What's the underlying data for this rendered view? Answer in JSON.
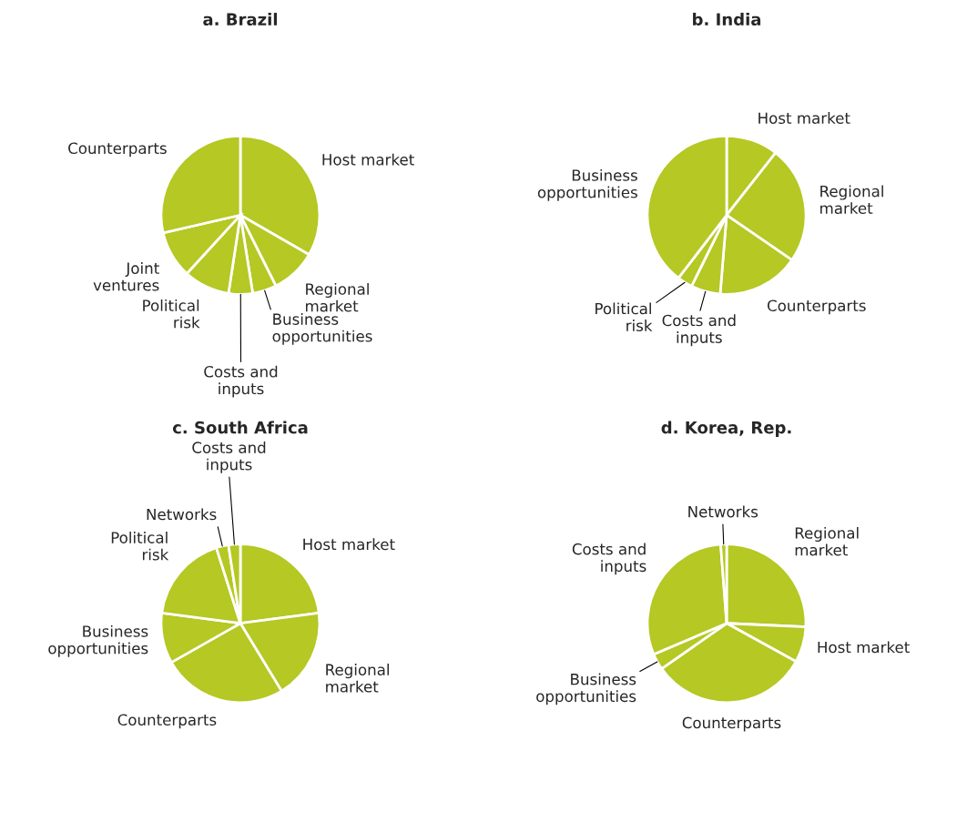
{
  "chart_data": [
    {
      "type": "pie",
      "title": "a. Brazil",
      "categories": [
        "Host market",
        "Regional market",
        "Business opportunities",
        "Costs and inputs",
        "Political risk",
        "Joint ventures",
        "Counterparts"
      ],
      "values": [
        33.3,
        9.3,
        4.9,
        4.9,
        9.4,
        9.6,
        28.6
      ],
      "colors": [
        "#b5c823",
        "#b5c823",
        "#b5c823",
        "#b5c823",
        "#b5c823",
        "#b5c823",
        "#b5c823"
      ]
    },
    {
      "type": "pie",
      "title": "b. India",
      "categories": [
        "Host market",
        "Regional market",
        "Counterparts",
        "Costs and inputs",
        "Political risk",
        "Business opportunities"
      ],
      "values": [
        10.6,
        24.0,
        16.7,
        6.0,
        3.1,
        39.6
      ],
      "colors": [
        "#b5c823",
        "#b5c823",
        "#b5c823",
        "#b5c823",
        "#b5c823",
        "#b5c823"
      ]
    },
    {
      "type": "pie",
      "title": "c. South Africa",
      "categories": [
        "Host market",
        "Regional market",
        "Counterparts",
        "Business opportunities",
        "Political risk",
        "Networks",
        "Costs and inputs"
      ],
      "values": [
        22.9,
        18.4,
        25.5,
        10.3,
        18.0,
        2.5,
        2.4
      ],
      "colors": [
        "#b5c823",
        "#b5c823",
        "#b5c823",
        "#b5c823",
        "#b5c823",
        "#b5c823",
        "#b5c823"
      ]
    },
    {
      "type": "pie",
      "title": "d. Korea, Rep.",
      "categories": [
        "Regional market",
        "Host market",
        "Counterparts",
        "Business opportunities",
        "Costs and inputs",
        "Networks"
      ],
      "values": [
        25.7,
        7.3,
        32.3,
        3.3,
        30.2,
        1.2
      ],
      "colors": [
        "#b5c823",
        "#b5c823",
        "#b5c823",
        "#b5c823",
        "#b5c823",
        "#b5c823"
      ]
    }
  ]
}
